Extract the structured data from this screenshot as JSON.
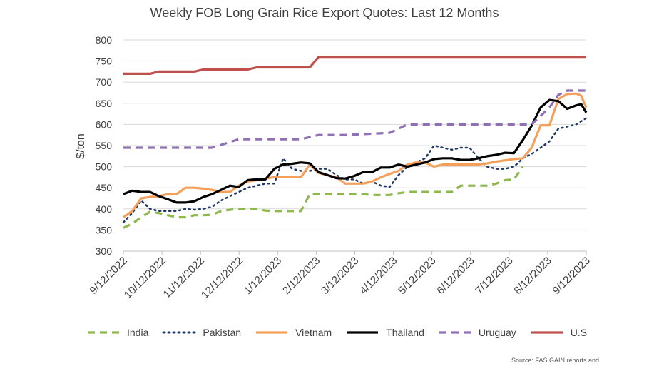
{
  "chart_data": {
    "type": "line",
    "title": "Weekly FOB Long Grain Rice Export Quotes: Last 12 Months",
    "ylabel": "$/ton",
    "xlabel": "",
    "ylim": [
      300,
      800
    ],
    "yticks": [
      300,
      350,
      400,
      450,
      500,
      550,
      600,
      650,
      700,
      750,
      800
    ],
    "xtick_labels": [
      "9/12/2022",
      "10/12/2022",
      "11/12/2022",
      "12/12/2022",
      "1/12/2023",
      "2/12/2023",
      "3/12/2023",
      "4/12/2023",
      "5/12/2023",
      "6/12/2023",
      "7/12/2023",
      "8/12/2023",
      "9/12/2023"
    ],
    "x_start": "2022-09-12",
    "x_end": "2023-09-12",
    "legend_position": "bottom",
    "grid": "horizontal",
    "source": "Source: FAS GAIN reports and",
    "series": [
      {
        "name": "India",
        "color": "#8DB84A",
        "style": "dashed",
        "points": [
          [
            "2022-09-12",
            355
          ],
          [
            "2022-09-19",
            365
          ],
          [
            "2022-09-26",
            380
          ],
          [
            "2022-10-03",
            393
          ],
          [
            "2022-10-10",
            390
          ],
          [
            "2022-10-17",
            385
          ],
          [
            "2022-10-24",
            380
          ],
          [
            "2022-10-31",
            380
          ],
          [
            "2022-11-07",
            385
          ],
          [
            "2022-11-14",
            385
          ],
          [
            "2022-11-21",
            386
          ],
          [
            "2022-11-28",
            395
          ],
          [
            "2022-12-05",
            398
          ],
          [
            "2022-12-12",
            400
          ],
          [
            "2022-12-19",
            400
          ],
          [
            "2022-12-26",
            400
          ],
          [
            "2023-01-02",
            396
          ],
          [
            "2023-01-09",
            395
          ],
          [
            "2023-01-16",
            395
          ],
          [
            "2023-01-23",
            395
          ],
          [
            "2023-01-30",
            395
          ],
          [
            "2023-02-06",
            435
          ],
          [
            "2023-02-13",
            435
          ],
          [
            "2023-02-20",
            435
          ],
          [
            "2023-02-27",
            435
          ],
          [
            "2023-03-06",
            435
          ],
          [
            "2023-03-13",
            435
          ],
          [
            "2023-03-20",
            435
          ],
          [
            "2023-03-27",
            433
          ],
          [
            "2023-04-03",
            433
          ],
          [
            "2023-04-10",
            433
          ],
          [
            "2023-04-17",
            437
          ],
          [
            "2023-04-24",
            440
          ],
          [
            "2023-05-01",
            440
          ],
          [
            "2023-05-08",
            440
          ],
          [
            "2023-05-15",
            440
          ],
          [
            "2023-05-22",
            440
          ],
          [
            "2023-05-29",
            440
          ],
          [
            "2023-06-05",
            455
          ],
          [
            "2023-06-12",
            455
          ],
          [
            "2023-06-19",
            455
          ],
          [
            "2023-06-26",
            455
          ],
          [
            "2023-07-03",
            460
          ],
          [
            "2023-07-10",
            468
          ],
          [
            "2023-07-17",
            470
          ],
          [
            "2023-07-24",
            500
          ]
        ]
      },
      {
        "name": "Pakistan",
        "color": "#1F3864",
        "style": "dotted",
        "points": [
          [
            "2022-09-12",
            368
          ],
          [
            "2022-09-19",
            390
          ],
          [
            "2022-09-26",
            420
          ],
          [
            "2022-10-03",
            400
          ],
          [
            "2022-10-10",
            395
          ],
          [
            "2022-10-17",
            395
          ],
          [
            "2022-10-24",
            395
          ],
          [
            "2022-10-31",
            400
          ],
          [
            "2022-11-07",
            398
          ],
          [
            "2022-11-14",
            400
          ],
          [
            "2022-11-21",
            405
          ],
          [
            "2022-11-28",
            420
          ],
          [
            "2022-12-05",
            430
          ],
          [
            "2022-12-12",
            440
          ],
          [
            "2022-12-19",
            450
          ],
          [
            "2022-12-26",
            455
          ],
          [
            "2023-01-02",
            460
          ],
          [
            "2023-01-09",
            460
          ],
          [
            "2023-01-16",
            520
          ],
          [
            "2023-01-23",
            495
          ],
          [
            "2023-01-30",
            490
          ],
          [
            "2023-02-06",
            490
          ],
          [
            "2023-02-13",
            495
          ],
          [
            "2023-02-20",
            495
          ],
          [
            "2023-02-27",
            480
          ],
          [
            "2023-03-06",
            470
          ],
          [
            "2023-03-13",
            470
          ],
          [
            "2023-03-20",
            460
          ],
          [
            "2023-03-27",
            465
          ],
          [
            "2023-04-03",
            455
          ],
          [
            "2023-04-10",
            452
          ],
          [
            "2023-04-17",
            480
          ],
          [
            "2023-04-24",
            500
          ],
          [
            "2023-05-01",
            510
          ],
          [
            "2023-05-08",
            520
          ],
          [
            "2023-05-15",
            550
          ],
          [
            "2023-05-22",
            545
          ],
          [
            "2023-05-29",
            540
          ],
          [
            "2023-06-05",
            545
          ],
          [
            "2023-06-12",
            545
          ],
          [
            "2023-06-19",
            520
          ],
          [
            "2023-06-26",
            500
          ],
          [
            "2023-07-03",
            495
          ],
          [
            "2023-07-10",
            495
          ],
          [
            "2023-07-17",
            500
          ],
          [
            "2023-07-24",
            520
          ],
          [
            "2023-07-31",
            530
          ],
          [
            "2023-08-07",
            545
          ],
          [
            "2023-08-14",
            560
          ],
          [
            "2023-08-21",
            590
          ],
          [
            "2023-08-28",
            595
          ],
          [
            "2023-09-04",
            600
          ],
          [
            "2023-09-12",
            615
          ]
        ]
      },
      {
        "name": "Vietnam",
        "color": "#F4A05A",
        "style": "solid",
        "points": [
          [
            "2022-09-12",
            380
          ],
          [
            "2022-09-19",
            395
          ],
          [
            "2022-09-26",
            425
          ],
          [
            "2022-10-03",
            428
          ],
          [
            "2022-10-10",
            430
          ],
          [
            "2022-10-17",
            435
          ],
          [
            "2022-10-24",
            435
          ],
          [
            "2022-10-31",
            450
          ],
          [
            "2022-11-07",
            450
          ],
          [
            "2022-11-14",
            448
          ],
          [
            "2022-11-21",
            445
          ],
          [
            "2022-11-28",
            440
          ],
          [
            "2022-12-05",
            440
          ],
          [
            "2022-12-12",
            455
          ],
          [
            "2022-12-19",
            465
          ],
          [
            "2022-12-26",
            468
          ],
          [
            "2023-01-02",
            472
          ],
          [
            "2023-01-09",
            475
          ],
          [
            "2023-01-16",
            475
          ],
          [
            "2023-01-23",
            475
          ],
          [
            "2023-01-30",
            475
          ],
          [
            "2023-02-06",
            505
          ],
          [
            "2023-02-13",
            485
          ],
          [
            "2023-02-20",
            480
          ],
          [
            "2023-02-27",
            475
          ],
          [
            "2023-03-06",
            460
          ],
          [
            "2023-03-13",
            460
          ],
          [
            "2023-03-20",
            460
          ],
          [
            "2023-03-27",
            465
          ],
          [
            "2023-04-03",
            475
          ],
          [
            "2023-04-10",
            483
          ],
          [
            "2023-04-17",
            490
          ],
          [
            "2023-04-24",
            505
          ],
          [
            "2023-05-01",
            510
          ],
          [
            "2023-05-08",
            510
          ],
          [
            "2023-05-15",
            500
          ],
          [
            "2023-05-22",
            505
          ],
          [
            "2023-05-29",
            505
          ],
          [
            "2023-06-05",
            505
          ],
          [
            "2023-06-12",
            505
          ],
          [
            "2023-06-19",
            505
          ],
          [
            "2023-06-26",
            508
          ],
          [
            "2023-07-03",
            512
          ],
          [
            "2023-07-10",
            515
          ],
          [
            "2023-07-17",
            518
          ],
          [
            "2023-07-24",
            520
          ],
          [
            "2023-07-31",
            545
          ],
          [
            "2023-08-07",
            598
          ],
          [
            "2023-08-14",
            598
          ],
          [
            "2023-08-21",
            660
          ],
          [
            "2023-08-28",
            672
          ],
          [
            "2023-09-04",
            673
          ],
          [
            "2023-09-08",
            668
          ],
          [
            "2023-09-12",
            640
          ]
        ]
      },
      {
        "name": "Thailand",
        "color": "#000000",
        "style": "solid",
        "points": [
          [
            "2022-09-12",
            435
          ],
          [
            "2022-09-19",
            443
          ],
          [
            "2022-09-26",
            440
          ],
          [
            "2022-10-03",
            440
          ],
          [
            "2022-10-10",
            430
          ],
          [
            "2022-10-17",
            423
          ],
          [
            "2022-10-24",
            415
          ],
          [
            "2022-10-31",
            415
          ],
          [
            "2022-11-07",
            418
          ],
          [
            "2022-11-14",
            428
          ],
          [
            "2022-11-21",
            435
          ],
          [
            "2022-11-28",
            445
          ],
          [
            "2022-12-05",
            455
          ],
          [
            "2022-12-12",
            452
          ],
          [
            "2022-12-19",
            468
          ],
          [
            "2022-12-26",
            470
          ],
          [
            "2023-01-02",
            470
          ],
          [
            "2023-01-09",
            495
          ],
          [
            "2023-01-16",
            505
          ],
          [
            "2023-01-23",
            507
          ],
          [
            "2023-01-30",
            510
          ],
          [
            "2023-02-06",
            508
          ],
          [
            "2023-02-13",
            487
          ],
          [
            "2023-02-20",
            480
          ],
          [
            "2023-02-27",
            473
          ],
          [
            "2023-03-06",
            472
          ],
          [
            "2023-03-13",
            478
          ],
          [
            "2023-03-20",
            487
          ],
          [
            "2023-03-27",
            487
          ],
          [
            "2023-04-03",
            498
          ],
          [
            "2023-04-10",
            498
          ],
          [
            "2023-04-17",
            505
          ],
          [
            "2023-04-24",
            500
          ],
          [
            "2023-05-01",
            505
          ],
          [
            "2023-05-08",
            510
          ],
          [
            "2023-05-15",
            518
          ],
          [
            "2023-05-22",
            520
          ],
          [
            "2023-05-29",
            520
          ],
          [
            "2023-06-05",
            516
          ],
          [
            "2023-06-12",
            516
          ],
          [
            "2023-06-19",
            520
          ],
          [
            "2023-06-26",
            525
          ],
          [
            "2023-07-03",
            528
          ],
          [
            "2023-07-10",
            533
          ],
          [
            "2023-07-17",
            532
          ],
          [
            "2023-07-24",
            563
          ],
          [
            "2023-07-31",
            597
          ],
          [
            "2023-08-07",
            640
          ],
          [
            "2023-08-14",
            658
          ],
          [
            "2023-08-21",
            655
          ],
          [
            "2023-08-28",
            637
          ],
          [
            "2023-09-04",
            645
          ],
          [
            "2023-09-08",
            648
          ],
          [
            "2023-09-12",
            628
          ]
        ]
      },
      {
        "name": "Uruguay",
        "color": "#8F6FB5",
        "style": "dashed",
        "points": [
          [
            "2022-09-12",
            545
          ],
          [
            "2022-11-21",
            545
          ],
          [
            "2022-12-12",
            565
          ],
          [
            "2023-01-30",
            565
          ],
          [
            "2023-02-13",
            575
          ],
          [
            "2023-03-06",
            575
          ],
          [
            "2023-04-10",
            580
          ],
          [
            "2023-04-24",
            600
          ],
          [
            "2023-07-31",
            600
          ],
          [
            "2023-08-14",
            640
          ],
          [
            "2023-08-21",
            670
          ],
          [
            "2023-08-28",
            680
          ],
          [
            "2023-09-12",
            680
          ]
        ]
      },
      {
        "name": "U.S",
        "color": "#C0504D",
        "style": "solid",
        "points": [
          [
            "2022-09-12",
            720
          ],
          [
            "2022-10-03",
            720
          ],
          [
            "2022-10-10",
            725
          ],
          [
            "2022-11-07",
            725
          ],
          [
            "2022-11-14",
            730
          ],
          [
            "2022-12-19",
            730
          ],
          [
            "2022-12-26",
            735
          ],
          [
            "2023-02-06",
            735
          ],
          [
            "2023-02-13",
            760
          ],
          [
            "2023-09-12",
            760
          ]
        ]
      }
    ]
  }
}
